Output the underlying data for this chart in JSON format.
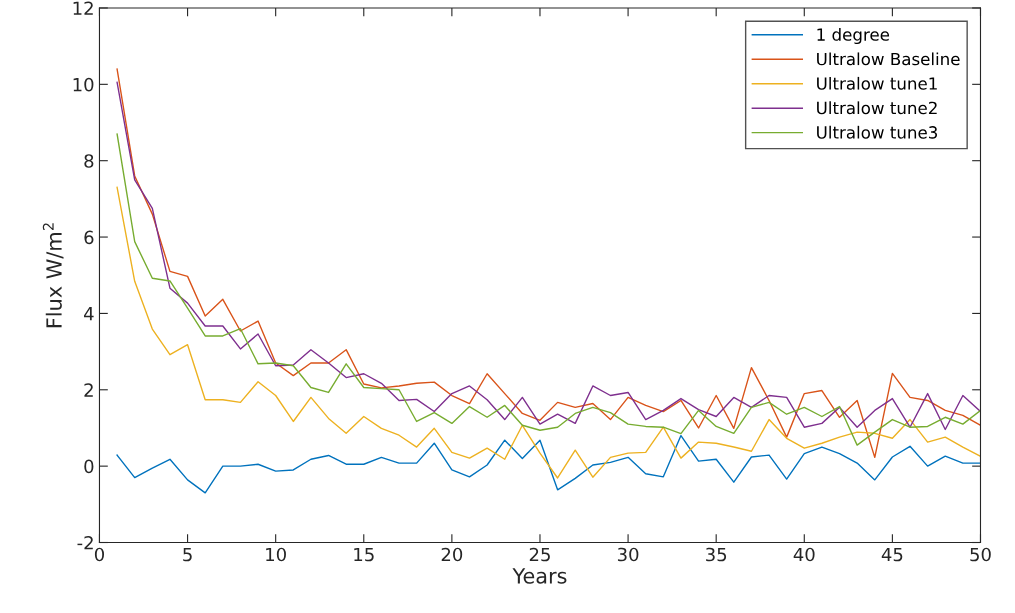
{
  "chart_data": {
    "type": "line",
    "xlabel": "Years",
    "ylabel": "Flux W/m$^{2}$",
    "x": [
      1,
      2,
      3,
      4,
      5,
      6,
      7,
      8,
      9,
      10,
      11,
      12,
      13,
      14,
      15,
      16,
      17,
      18,
      19,
      20,
      21,
      22,
      23,
      24,
      25,
      26,
      27,
      28,
      29,
      30,
      31,
      32,
      33,
      34,
      35,
      36,
      37,
      38,
      39,
      40,
      41,
      42,
      43,
      44,
      45,
      46,
      47,
      48,
      49,
      50
    ],
    "series": [
      {
        "name": "1 degree",
        "color": "#0072bd",
        "values": [
          0.29,
          -0.3,
          -0.05,
          0.18,
          -0.36,
          -0.7,
          0.0,
          0.0,
          0.05,
          -0.13,
          -0.1,
          0.18,
          0.28,
          0.05,
          0.05,
          0.23,
          0.08,
          0.08,
          0.6,
          -0.1,
          -0.28,
          0.03,
          0.68,
          0.2,
          0.68,
          -0.62,
          -0.32,
          0.03,
          0.1,
          0.23,
          -0.2,
          -0.28,
          0.8,
          0.13,
          0.18,
          -0.42,
          0.24,
          0.29,
          -0.34,
          0.33,
          0.5,
          0.33,
          0.08,
          -0.36,
          0.24,
          0.52,
          0.0,
          0.26,
          0.08,
          0.08
        ]
      },
      {
        "name": "Ultralow Baseline",
        "color": "#d95319",
        "values": [
          10.4,
          7.6,
          6.6,
          5.1,
          4.97,
          3.93,
          4.37,
          3.54,
          3.8,
          2.7,
          2.37,
          2.7,
          2.7,
          3.05,
          2.15,
          2.05,
          2.1,
          2.17,
          2.2,
          1.85,
          1.64,
          2.42,
          1.9,
          1.38,
          1.2,
          1.67,
          1.54,
          1.64,
          1.22,
          1.8,
          1.59,
          1.43,
          1.72,
          1.0,
          1.85,
          0.99,
          2.58,
          1.72,
          0.76,
          1.9,
          1.98,
          1.28,
          1.72,
          0.23,
          2.43,
          1.8,
          1.72,
          1.46,
          1.33,
          1.07
        ]
      },
      {
        "name": "Ultralow tune1",
        "color": "#edb120",
        "values": [
          7.3,
          4.84,
          3.59,
          2.92,
          3.18,
          1.74,
          1.74,
          1.67,
          2.21,
          1.85,
          1.17,
          1.8,
          1.25,
          0.86,
          1.3,
          0.99,
          0.81,
          0.5,
          0.99,
          0.36,
          0.21,
          0.47,
          0.18,
          1.07,
          0.34,
          -0.31,
          0.42,
          -0.29,
          0.23,
          0.34,
          0.36,
          1.02,
          0.21,
          0.63,
          0.6,
          0.5,
          0.39,
          1.22,
          0.73,
          0.47,
          0.6,
          0.76,
          0.89,
          0.86,
          0.73,
          1.22,
          0.63,
          0.76,
          0.5,
          0.26
        ]
      },
      {
        "name": "Ultralow tune2",
        "color": "#7e2f8e",
        "values": [
          10.05,
          7.5,
          6.75,
          4.66,
          4.27,
          3.67,
          3.67,
          3.07,
          3.46,
          2.63,
          2.65,
          3.05,
          2.7,
          2.32,
          2.42,
          2.17,
          1.72,
          1.75,
          1.43,
          1.9,
          2.1,
          1.74,
          1.22,
          1.8,
          1.1,
          1.36,
          1.12,
          2.1,
          1.85,
          1.93,
          1.22,
          1.46,
          1.77,
          1.48,
          1.3,
          1.8,
          1.54,
          1.85,
          1.8,
          1.02,
          1.12,
          1.54,
          1.02,
          1.46,
          1.77,
          1.02,
          1.9,
          0.96,
          1.85,
          1.43
        ]
      },
      {
        "name": "Ultralow tune3",
        "color": "#77ac30",
        "values": [
          8.7,
          5.88,
          4.92,
          4.85,
          4.14,
          3.41,
          3.41,
          3.6,
          2.68,
          2.7,
          2.63,
          2.06,
          1.93,
          2.68,
          2.06,
          2.03,
          2.0,
          1.17,
          1.4,
          1.12,
          1.56,
          1.28,
          1.59,
          1.07,
          0.94,
          1.02,
          1.38,
          1.54,
          1.4,
          1.1,
          1.04,
          1.02,
          0.85,
          1.46,
          1.04,
          0.86,
          1.54,
          1.67,
          1.36,
          1.54,
          1.3,
          1.56,
          0.55,
          0.89,
          1.22,
          1.02,
          1.04,
          1.28,
          1.1,
          1.46
        ]
      }
    ],
    "xlim": [
      0,
      50
    ],
    "xticks": [
      0,
      5,
      10,
      15,
      20,
      25,
      30,
      35,
      40,
      45,
      50
    ],
    "ylim": [
      -2,
      12
    ],
    "yticks": [
      -2,
      0,
      2,
      4,
      6,
      8,
      10,
      12
    ],
    "grid": false,
    "legend": "top right",
    "marker": "none",
    "line_style": "solid"
  }
}
